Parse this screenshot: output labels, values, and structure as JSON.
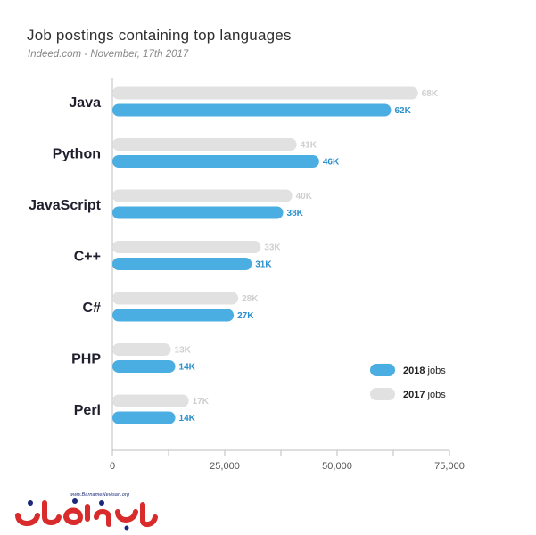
{
  "header": {
    "title": "Job postings containing top languages",
    "subtitle": "Indeed.com - November, 17th 2017"
  },
  "chart_data": {
    "type": "bar",
    "orientation": "horizontal",
    "categories": [
      "Java",
      "Python",
      "JavaScript",
      "C++",
      "C#",
      "PHP",
      "Perl"
    ],
    "series": [
      {
        "name": "2017",
        "values": [
          68000,
          41000,
          40000,
          33000,
          28000,
          13000,
          17000
        ],
        "labels": [
          "68K",
          "41K",
          "40K",
          "33K",
          "28K",
          "13K",
          "17K"
        ],
        "color": "#e1e1e1",
        "label_color": "#cfcfcf"
      },
      {
        "name": "2018",
        "values": [
          62000,
          46000,
          38000,
          31000,
          27000,
          14000,
          14000
        ],
        "labels": [
          "62K",
          "46K",
          "38K",
          "31K",
          "27K",
          "14K",
          "14K"
        ],
        "color": "#4aaee2",
        "label_color": "#2a8fcb"
      }
    ],
    "xlim": [
      0,
      75000
    ],
    "xticks": [
      0,
      25000,
      50000,
      75000
    ],
    "xtick_labels": [
      "0",
      "25,000",
      "50,000",
      "75,000"
    ],
    "legend": {
      "position": "bottom-right",
      "items": [
        {
          "bold": "2018",
          "rest": " jobs",
          "color": "#4aaee2"
        },
        {
          "bold": "2017",
          "rest": " jobs",
          "color": "#e1e1e1"
        }
      ]
    },
    "grid": false
  },
  "watermark": {
    "url": "www.BarnameNevisan.org"
  }
}
